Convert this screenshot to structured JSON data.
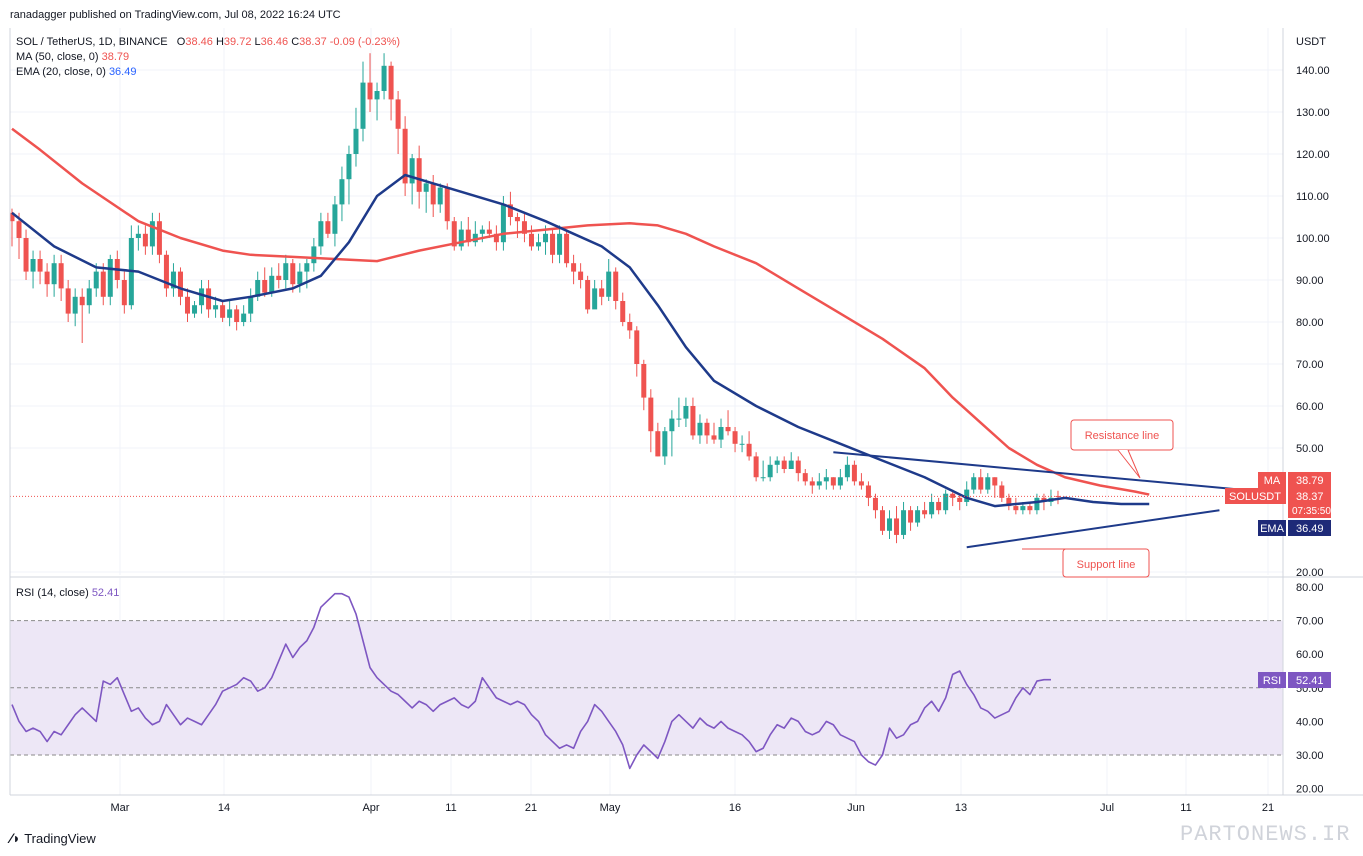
{
  "header": {
    "published": "ranadagger published on TradingView.com, Jul 08, 2022 16:24 UTC"
  },
  "legend": {
    "symbol": "SOL / TetherUS, 1D, BINANCE",
    "open_label": "O",
    "open": "38.46",
    "high_label": "H",
    "high": "39.72",
    "low_label": "L",
    "low": "36.46",
    "close_label": "C",
    "close": "38.37",
    "change": "-0.09 (-0.23%)",
    "ma_label": "MA (50, close, 0)",
    "ma_value": "38.79",
    "ema_label": "EMA (20, close, 0)",
    "ema_value": "36.49",
    "rsi_label": "RSI (14, close)",
    "rsi_value": "52.41"
  },
  "colors": {
    "up": "#26a69a",
    "down": "#ef5350",
    "ma": "#ef5350",
    "ema": "#1e3a8a",
    "rsi": "#7e57c2",
    "rsi_band": "#ede7f6",
    "trendline": "#1e3a8a",
    "grid": "#f0f3fa"
  },
  "chart_data": [
    {
      "type": "candlestick",
      "title": "SOL / TetherUS, 1D, BINANCE",
      "ylabel": "USDT",
      "ylim": [
        17,
        148
      ],
      "x_labels": [
        "Mar",
        "14",
        "Apr",
        "11",
        "21",
        "May",
        "16",
        "Jun",
        "13",
        "Jul",
        "11",
        "21"
      ],
      "y_ticks": [
        "140.00",
        "130.00",
        "120.00",
        "110.00",
        "100.00",
        "90.00",
        "80.00",
        "70.00",
        "60.00",
        "50.00",
        "20.00"
      ],
      "x_start": "2022-02-10",
      "candles": [
        [
          106,
          104,
          107,
          98
        ],
        [
          104,
          100,
          106,
          95
        ],
        [
          100,
          92,
          102,
          90
        ],
        [
          92,
          95,
          97,
          88
        ],
        [
          95,
          92,
          97,
          89
        ],
        [
          92,
          89,
          94,
          86
        ],
        [
          89,
          94,
          96,
          86
        ],
        [
          94,
          88,
          96,
          85
        ],
        [
          88,
          82,
          90,
          80
        ],
        [
          82,
          86,
          88,
          79
        ],
        [
          86,
          84,
          88,
          75
        ],
        [
          84,
          88,
          90,
          82
        ],
        [
          88,
          92,
          94,
          86
        ],
        [
          92,
          86,
          94,
          84
        ],
        [
          86,
          95,
          96,
          84
        ],
        [
          95,
          90,
          97,
          88
        ],
        [
          90,
          84,
          92,
          82
        ],
        [
          84,
          100,
          103,
          83
        ],
        [
          100,
          101,
          103,
          97
        ],
        [
          101,
          98,
          103,
          96
        ],
        [
          98,
          104,
          106,
          96
        ],
        [
          104,
          96,
          106,
          94
        ],
        [
          96,
          88,
          97,
          86
        ],
        [
          88,
          92,
          94,
          86
        ],
        [
          92,
          86,
          93,
          84
        ],
        [
          86,
          82,
          88,
          80
        ],
        [
          82,
          84,
          85,
          81
        ],
        [
          84,
          88,
          90,
          82
        ],
        [
          88,
          83,
          90,
          81
        ],
        [
          83,
          84,
          86,
          81
        ],
        [
          84,
          81,
          85,
          80
        ],
        [
          81,
          83,
          85,
          79
        ],
        [
          83,
          80,
          84,
          78
        ],
        [
          80,
          82,
          84,
          79
        ],
        [
          82,
          86,
          88,
          80
        ],
        [
          86,
          90,
          92,
          85
        ],
        [
          90,
          87,
          93,
          86
        ],
        [
          87,
          91,
          93,
          86
        ],
        [
          91,
          90,
          94,
          88
        ],
        [
          90,
          94,
          96,
          88
        ],
        [
          94,
          89,
          95,
          87
        ],
        [
          89,
          92,
          94,
          87
        ],
        [
          92,
          94,
          95,
          88
        ],
        [
          94,
          98,
          100,
          92
        ],
        [
          98,
          104,
          106,
          96
        ],
        [
          104,
          101,
          106,
          100
        ],
        [
          101,
          108,
          110,
          98
        ],
        [
          108,
          114,
          117,
          104
        ],
        [
          114,
          120,
          122,
          108
        ],
        [
          120,
          126,
          131,
          117
        ],
        [
          126,
          137,
          142,
          123
        ],
        [
          137,
          133,
          144,
          130
        ],
        [
          133,
          135,
          137,
          128
        ],
        [
          135,
          141,
          144,
          133
        ],
        [
          141,
          133,
          142,
          128
        ],
        [
          133,
          126,
          135,
          120
        ],
        [
          126,
          113,
          129,
          110
        ],
        [
          113,
          119,
          120,
          108
        ],
        [
          119,
          111,
          122,
          107
        ],
        [
          111,
          113,
          114,
          106
        ],
        [
          113,
          108,
          115,
          105
        ],
        [
          108,
          112,
          113,
          106
        ],
        [
          112,
          104,
          113,
          102
        ],
        [
          104,
          98,
          105,
          97
        ],
        [
          98,
          102,
          104,
          97
        ],
        [
          102,
          99,
          105,
          98
        ],
        [
          99,
          101,
          104,
          98
        ],
        [
          101,
          102,
          103,
          99
        ],
        [
          102,
          101,
          104,
          100
        ],
        [
          101,
          99,
          103,
          97
        ],
        [
          99,
          108,
          110,
          97
        ],
        [
          108,
          105,
          111,
          103
        ],
        [
          105,
          104,
          106,
          100
        ],
        [
          104,
          101,
          106,
          99
        ],
        [
          101,
          98,
          103,
          97
        ],
        [
          98,
          99,
          101,
          97
        ],
        [
          99,
          101,
          103,
          96
        ],
        [
          101,
          96,
          102,
          94
        ],
        [
          96,
          101,
          103,
          94
        ],
        [
          101,
          94,
          102,
          93
        ],
        [
          94,
          92,
          96,
          89
        ],
        [
          92,
          90,
          94,
          88
        ],
        [
          90,
          83,
          91,
          82
        ],
        [
          83,
          88,
          90,
          85
        ],
        [
          88,
          86,
          90,
          84
        ],
        [
          86,
          92,
          95,
          85
        ],
        [
          92,
          85,
          93,
          83
        ],
        [
          85,
          80,
          87,
          79
        ],
        [
          80,
          78,
          82,
          76
        ],
        [
          78,
          70,
          79,
          67
        ],
        [
          70,
          62,
          71,
          59
        ],
        [
          62,
          54,
          64,
          49
        ],
        [
          54,
          48,
          56,
          48
        ],
        [
          48,
          54,
          55,
          46
        ],
        [
          54,
          57,
          59,
          48
        ],
        [
          57,
          57,
          62,
          55
        ],
        [
          57,
          60,
          62,
          55
        ],
        [
          60,
          53,
          62,
          52
        ],
        [
          53,
          56,
          58,
          51
        ],
        [
          56,
          53,
          57,
          51
        ],
        [
          53,
          52,
          56,
          51
        ],
        [
          52,
          55,
          57,
          50
        ],
        [
          55,
          54,
          59,
          53
        ],
        [
          54,
          51,
          55,
          49
        ],
        [
          51,
          51,
          53,
          49
        ],
        [
          51,
          48,
          54,
          47
        ],
        [
          48,
          43,
          49,
          42
        ],
        [
          43,
          43,
          47,
          42
        ],
        [
          43,
          46,
          48,
          42
        ],
        [
          46,
          47,
          48,
          44
        ],
        [
          47,
          45,
          48,
          44
        ],
        [
          45,
          47,
          49,
          45
        ],
        [
          47,
          44,
          48,
          42
        ],
        [
          44,
          42,
          45,
          41
        ],
        [
          42,
          41,
          43,
          39
        ],
        [
          41,
          42,
          44,
          40
        ],
        [
          42,
          43,
          45,
          40
        ],
        [
          43,
          41,
          43,
          40
        ],
        [
          41,
          43,
          45,
          40
        ],
        [
          43,
          46,
          48,
          42
        ],
        [
          46,
          42,
          47,
          41
        ],
        [
          42,
          41,
          44,
          40
        ],
        [
          41,
          38,
          42,
          36
        ],
        [
          38,
          35,
          39,
          33
        ],
        [
          35,
          30,
          36,
          29
        ],
        [
          30,
          33,
          35,
          28
        ],
        [
          33,
          29,
          36,
          27
        ],
        [
          29,
          35,
          37,
          28
        ],
        [
          35,
          32,
          36,
          30
        ],
        [
          32,
          35,
          36,
          31
        ],
        [
          35,
          34,
          37,
          33
        ],
        [
          34,
          37,
          39,
          33
        ],
        [
          37,
          35,
          38,
          34
        ],
        [
          35,
          39,
          40,
          34
        ],
        [
          39,
          38,
          40,
          36
        ],
        [
          38,
          37,
          39,
          35
        ],
        [
          37,
          40,
          42,
          36
        ],
        [
          40,
          43,
          44,
          39
        ],
        [
          43,
          40,
          45,
          39
        ],
        [
          40,
          43,
          44,
          39
        ],
        [
          43,
          41,
          43,
          38
        ],
        [
          41,
          38,
          42,
          37
        ],
        [
          38,
          36,
          39,
          35
        ],
        [
          36,
          35,
          38,
          34
        ],
        [
          35,
          36,
          37,
          34
        ],
        [
          36,
          35,
          37,
          34
        ],
        [
          35,
          38,
          39,
          34
        ],
        [
          38,
          37,
          39,
          35
        ],
        [
          37,
          38,
          40,
          36
        ],
        [
          38.46,
          38.37,
          39.72,
          36.46
        ]
      ],
      "ma50": [
        [
          0,
          126
        ],
        [
          4,
          121
        ],
        [
          10,
          113
        ],
        [
          18,
          104
        ],
        [
          24,
          100
        ],
        [
          30,
          97
        ],
        [
          34,
          96
        ],
        [
          40,
          95.5
        ],
        [
          46,
          95
        ],
        [
          52,
          94.5
        ],
        [
          58,
          97
        ],
        [
          64,
          99
        ],
        [
          70,
          101
        ],
        [
          76,
          102
        ],
        [
          82,
          103
        ],
        [
          88,
          103.5
        ],
        [
          92,
          103
        ],
        [
          96,
          101
        ],
        [
          100,
          98
        ],
        [
          106,
          94
        ],
        [
          112,
          88
        ],
        [
          118,
          82
        ],
        [
          124,
          76
        ],
        [
          130,
          69
        ],
        [
          134,
          62
        ],
        [
          138,
          56
        ],
        [
          142,
          50
        ],
        [
          146,
          46
        ],
        [
          150,
          43
        ],
        [
          155,
          41
        ],
        [
          160,
          39.5
        ],
        [
          162,
          38.79
        ]
      ],
      "ema20": [
        [
          0,
          106
        ],
        [
          6,
          98
        ],
        [
          12,
          93
        ],
        [
          18,
          92
        ],
        [
          24,
          88
        ],
        [
          30,
          85
        ],
        [
          34,
          86
        ],
        [
          40,
          88
        ],
        [
          44,
          91
        ],
        [
          48,
          99
        ],
        [
          52,
          110
        ],
        [
          56,
          115
        ],
        [
          60,
          113
        ],
        [
          64,
          111
        ],
        [
          70,
          108
        ],
        [
          76,
          104
        ],
        [
          80,
          101
        ],
        [
          84,
          98
        ],
        [
          88,
          93
        ],
        [
          92,
          84
        ],
        [
          96,
          74
        ],
        [
          100,
          66
        ],
        [
          106,
          60
        ],
        [
          112,
          55
        ],
        [
          118,
          51
        ],
        [
          124,
          47
        ],
        [
          130,
          43
        ],
        [
          136,
          38
        ],
        [
          140,
          36
        ],
        [
          146,
          37
        ],
        [
          150,
          38
        ],
        [
          154,
          37
        ],
        [
          158,
          36.5
        ],
        [
          162,
          36.49
        ]
      ],
      "resistance_line": [
        [
          117,
          49
        ],
        [
          175,
          40
        ]
      ],
      "support_line": [
        [
          136,
          26
        ],
        [
          172,
          35
        ]
      ],
      "annotations": [
        "Resistance line",
        "Support line"
      ],
      "price_labels": [
        {
          "name": "MA",
          "value": "38.79"
        },
        {
          "name": "SOLUSDT",
          "value": "38.37",
          "countdown": "07:35:50"
        },
        {
          "name": "EMA",
          "value": "36.49"
        }
      ]
    },
    {
      "type": "line",
      "title": "RSI (14, close)",
      "ylim": [
        18,
        82
      ],
      "y_ticks": [
        "80.00",
        "70.00",
        "60.00",
        "50.00",
        "40.00",
        "30.00",
        "20.00"
      ],
      "band": [
        30,
        70
      ],
      "midline": 50,
      "values": [
        45,
        40,
        37,
        38,
        37,
        34,
        37,
        36,
        39,
        42,
        44,
        42,
        40,
        52,
        51,
        53,
        48,
        43,
        44,
        41,
        39,
        40,
        45,
        42,
        39,
        41,
        40,
        39,
        42,
        45,
        49,
        50,
        51,
        53,
        52,
        49,
        50,
        53,
        58,
        63,
        59,
        62,
        64,
        68,
        74,
        76,
        78,
        78,
        77,
        72,
        64,
        56,
        53,
        51,
        49,
        48,
        46,
        44,
        46,
        45,
        43,
        45,
        46,
        47,
        45,
        44,
        46,
        53,
        50,
        47,
        46,
        45,
        46,
        45,
        42,
        40,
        36,
        34,
        32,
        33,
        32,
        37,
        40,
        45,
        43,
        40,
        37,
        33,
        26,
        30,
        33,
        31,
        29,
        34,
        40,
        42,
        40,
        38,
        41,
        39,
        38,
        40,
        38,
        37,
        36,
        34,
        31,
        32,
        36,
        39,
        38,
        41,
        40,
        37,
        36,
        37,
        40,
        39,
        36,
        35,
        34,
        30,
        28,
        27,
        30,
        38,
        35,
        36,
        39,
        40,
        44,
        46,
        43,
        47,
        54,
        55,
        51,
        48,
        44,
        43,
        41,
        42,
        43,
        47,
        50,
        48,
        52,
        52.41,
        52.41
      ]
    }
  ],
  "footer": {
    "brand": "TradingView",
    "watermark": "PARTONEWS.IR"
  }
}
